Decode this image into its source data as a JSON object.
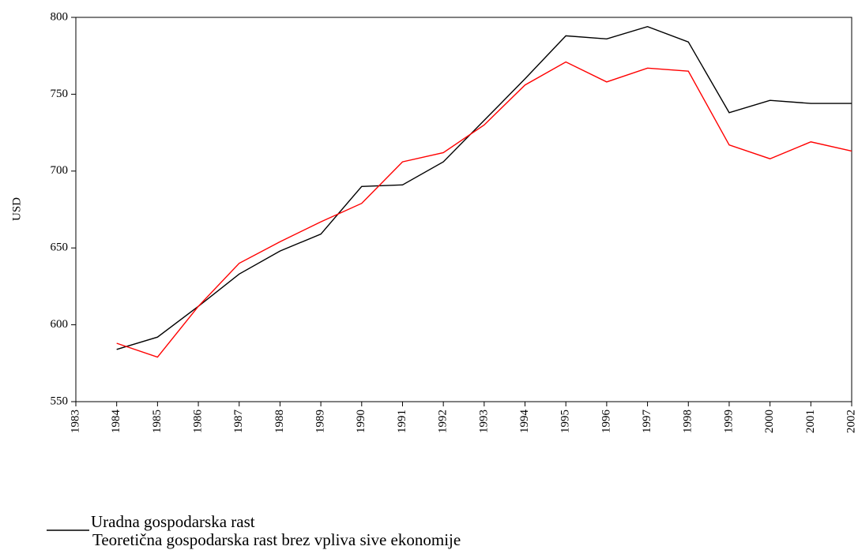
{
  "chart_data": {
    "type": "line",
    "ylabel": "USD",
    "x": [
      1984,
      1985,
      1986,
      1987,
      1988,
      1989,
      1990,
      1991,
      1992,
      1993,
      1994,
      1995,
      1996,
      1997,
      1998,
      1999,
      2000,
      2001,
      2002
    ],
    "series": [
      {
        "name": "Uradna gospodarska rast",
        "color": "#000000",
        "values": [
          584,
          592,
          612,
          633,
          648,
          659,
          690,
          691,
          706,
          733,
          760,
          788,
          786,
          794,
          784,
          738,
          746,
          744,
          744
        ]
      },
      {
        "name": "Teoretična gospodarska rast brez vpliva sive ekonomije",
        "color": "#ff0000",
        "values": [
          588,
          579,
          612,
          640,
          654,
          667,
          679,
          706,
          712,
          730,
          756,
          771,
          758,
          767,
          765,
          717,
          708,
          719,
          713
        ]
      }
    ],
    "xlim": [
      1983,
      2002
    ],
    "xticks": [
      1983,
      1984,
      1985,
      1986,
      1987,
      1988,
      1989,
      1990,
      1991,
      1992,
      1993,
      1994,
      1995,
      1996,
      1997,
      1998,
      1999,
      2000,
      2001,
      2002
    ],
    "ylim": [
      550,
      800
    ],
    "yticks": [
      550,
      600,
      650,
      700,
      750,
      800
    ],
    "grid": false
  }
}
